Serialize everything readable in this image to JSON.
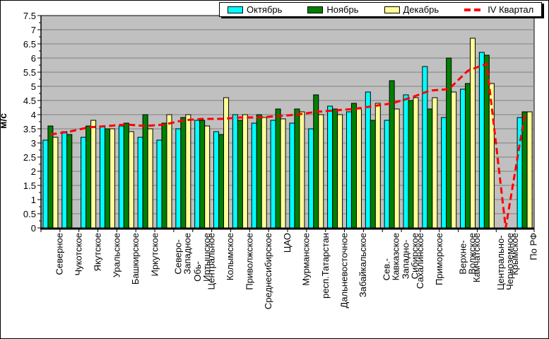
{
  "chart_data": {
    "type": "bar",
    "title": "",
    "xlabel": "",
    "ylabel": "м/с",
    "ylim": [
      0,
      7.5
    ],
    "ytick_step": 0.5,
    "yticks": [
      "7.5",
      "7",
      "6.5",
      "6",
      "5.5",
      "5",
      "4.5",
      "4",
      "3.5",
      "3",
      "2.5",
      "2",
      "1.5",
      "1",
      "0.5",
      "0"
    ],
    "grid": true,
    "plot_bg": "#c0c0c0",
    "grid_color": "#808080",
    "legend_position": "top-center",
    "categories": [
      "Северное",
      "Чукотское",
      "Якутское",
      "Уральское",
      "Башкирское",
      "Иркутское",
      "Северо-\nЗападное",
      "Обь-\nИртышское",
      "Центральное",
      "Колымское",
      "Приволжское",
      "Среднесибирское",
      "ЦАО",
      "Мурманское",
      "респ.Татарстан",
      "Дальневосточное",
      "Забайкальское",
      "Сев.-\nКавказское",
      "Западно-\nСибирское",
      "Сахалинское",
      "Приморское",
      "Верхне-\nВолжское",
      "Камчатское",
      "Центрально-\nЧерноземное",
      "Крымское",
      "По РФ"
    ],
    "series": [
      {
        "name": "Октябрь",
        "type": "bar",
        "color": "#00ffff",
        "values": [
          3.1,
          3.4,
          3.2,
          3.6,
          3.6,
          3.2,
          3.1,
          3.5,
          3.8,
          3.4,
          4.0,
          3.7,
          3.8,
          3.7,
          3.5,
          4.3,
          4.1,
          4.8,
          3.8,
          4.7,
          5.7,
          3.9,
          4.9,
          6.2,
          null,
          3.9
        ]
      },
      {
        "name": "Ноябрь",
        "type": "bar",
        "color": "#008000",
        "values": [
          3.6,
          3.3,
          3.6,
          3.5,
          3.7,
          4.0,
          3.7,
          3.9,
          3.8,
          3.3,
          3.8,
          4.0,
          4.2,
          4.2,
          4.7,
          4.2,
          4.4,
          3.8,
          5.2,
          4.5,
          4.2,
          6.0,
          5.1,
          6.1,
          null,
          4.1
        ]
      },
      {
        "name": "Декабрь",
        "type": "bar",
        "color": "#ffff99",
        "values": [
          3.2,
          null,
          3.8,
          3.5,
          3.4,
          3.5,
          4.0,
          4.0,
          3.6,
          4.6,
          4.0,
          3.9,
          3.85,
          4.1,
          4.0,
          4.0,
          4.2,
          4.4,
          4.2,
          4.6,
          4.6,
          4.8,
          6.7,
          5.1,
          null,
          4.1
        ]
      },
      {
        "name": "IV Квартал",
        "type": "line",
        "dashed": true,
        "color": "#ff0000",
        "values": [
          3.3,
          3.4,
          3.55,
          3.6,
          3.65,
          3.6,
          3.65,
          3.8,
          3.85,
          3.85,
          3.9,
          3.9,
          3.95,
          4.0,
          4.1,
          4.15,
          4.2,
          4.3,
          4.4,
          4.6,
          4.85,
          4.9,
          5.55,
          5.8,
          0,
          4.0
        ]
      }
    ]
  }
}
